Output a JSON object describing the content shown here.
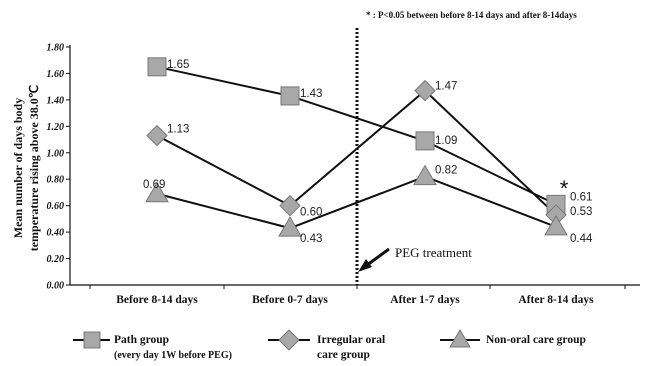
{
  "chart_data": {
    "type": "line",
    "categories": [
      "Before 8-14 days",
      "Before 0-7 days",
      "After 1-7 days",
      "After 8-14 days"
    ],
    "ylim": [
      0,
      1.8
    ],
    "yticks": [
      "0.00",
      "0.20",
      "0.40",
      "0.60",
      "0.80",
      "1.00",
      "1.20",
      "1.40",
      "1.60",
      "1.80"
    ],
    "ylabel_line1": "Mean number of days body",
    "ylabel_line2": "temperature rising above 38.0℃",
    "grid": false,
    "legend_position": "bottom",
    "series": [
      {
        "name": "Path group",
        "sub": "(every day 1W before PEG)",
        "marker": "square",
        "values": [
          1.65,
          1.43,
          1.09,
          0.61
        ],
        "labels": [
          "1.65",
          "1.43",
          "1.09",
          "0.61"
        ]
      },
      {
        "name": "Irregular oral",
        "name2": "care group",
        "marker": "diamond",
        "values": [
          1.13,
          0.6,
          1.47,
          0.53
        ],
        "labels": [
          "1.13",
          "0.60",
          "1.47",
          "0.53"
        ]
      },
      {
        "name": "Non-oral care group",
        "marker": "triangle",
        "values": [
          0.69,
          0.43,
          0.82,
          0.44
        ],
        "labels": [
          "0.69",
          "0.43",
          "0.82",
          "0.44"
        ]
      }
    ],
    "annotations": {
      "treatment": "PEG treatment",
      "significance_marker": "*",
      "note": "* : P<0.05  between before 8-14 days and after 8-14days"
    }
  },
  "colors": {
    "marker_fill": "#a8a8a8",
    "marker_stroke": "#777777",
    "line": "#111111"
  }
}
